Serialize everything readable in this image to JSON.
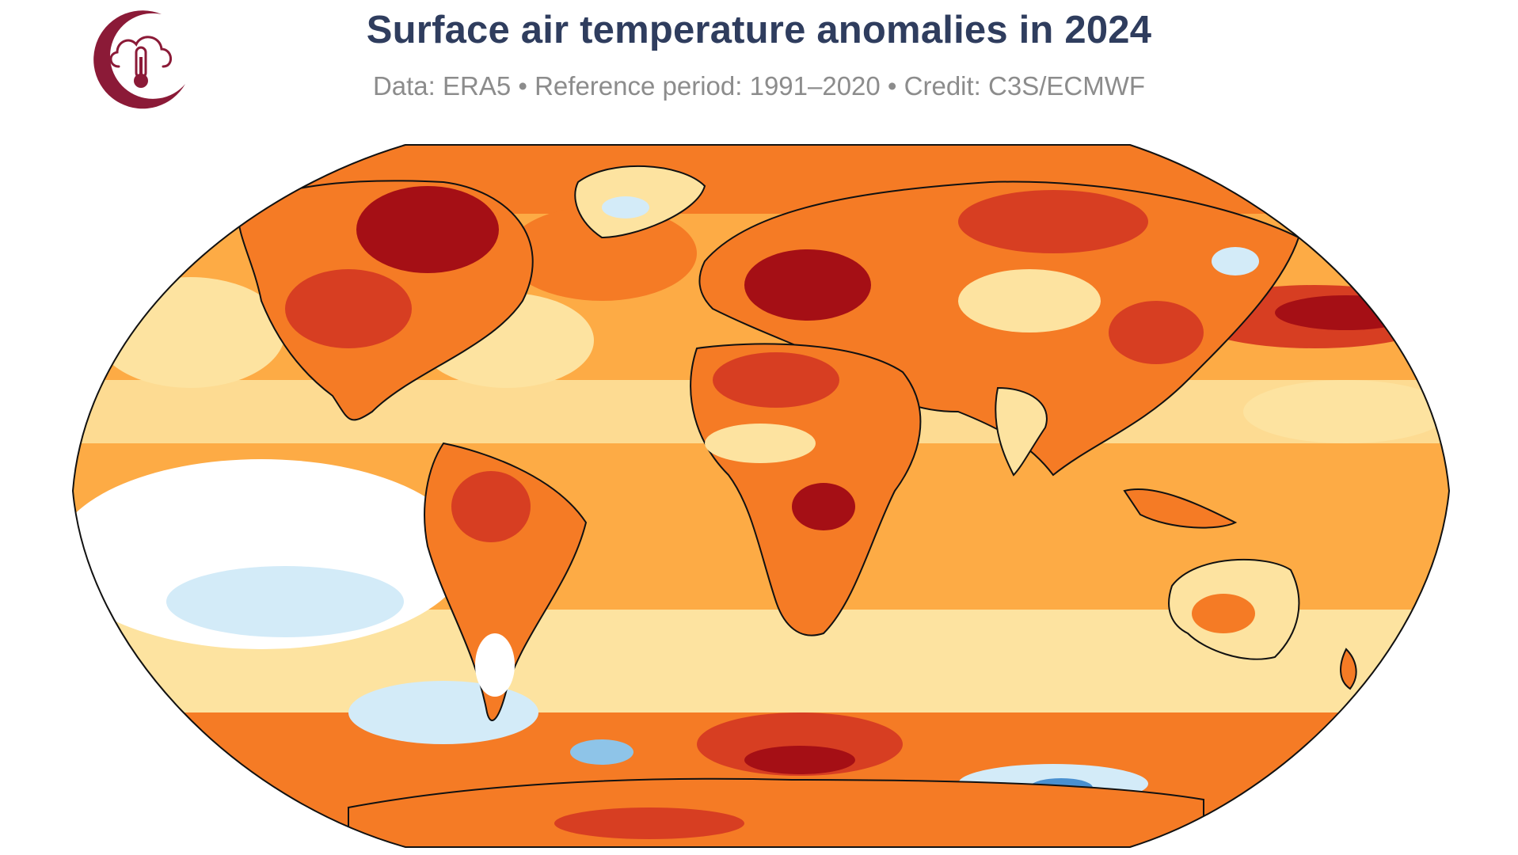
{
  "header": {
    "title": "Surface air temperature anomalies in 2024",
    "subtitle": "Data: ERA5 • Reference period: 1991–2020 • Credit: C3S/ECMWF"
  },
  "logo": {
    "icon": "cloud-thermometer-icon",
    "color": "#8b1a37"
  },
  "map": {
    "projection": "Robinson",
    "palette": {
      "strong_warm": "#a50f15",
      "warm": "#d73e22",
      "moderate_warm": "#f57b25",
      "light_warm": "#fdab45",
      "slight_warm": "#fde3a0",
      "neutral": "#ffffff",
      "slight_cool": "#d3ebf8",
      "cool": "#8ec4e8",
      "strong_cool": "#4a90d0"
    }
  }
}
